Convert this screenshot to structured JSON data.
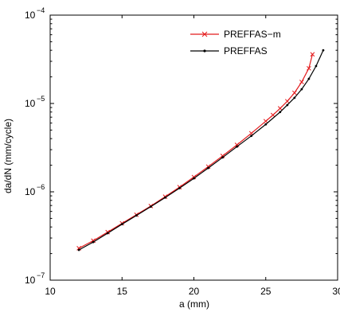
{
  "chart_data": {
    "type": "line",
    "xlabel": "a (mm)",
    "ylabel": "da/dN (mm/cycle)",
    "xlim": [
      10,
      30
    ],
    "ylim": [
      1e-07,
      0.0001
    ],
    "yscale": "log",
    "xticks": [
      10,
      15,
      20,
      25,
      30
    ],
    "xtick_labels": [
      "10",
      "15",
      "20",
      "25",
      "30"
    ],
    "yticks": [
      1e-07,
      1e-06,
      1e-05,
      0.0001
    ],
    "ytick_labels": [
      {
        "base": "10",
        "exp": "−7"
      },
      {
        "base": "10",
        "exp": "−6"
      },
      {
        "base": "10",
        "exp": "−5"
      },
      {
        "base": "10",
        "exp": "−4"
      }
    ],
    "grid": false,
    "legend_position": "top-right",
    "series": [
      {
        "name": "PREFFAS−m",
        "color": "#e41a1c",
        "marker": "x",
        "x": [
          12.0,
          13.0,
          14.0,
          15.0,
          16.0,
          17.0,
          18.0,
          19.0,
          20.0,
          21.0,
          22.0,
          23.0,
          24.0,
          25.0,
          25.5,
          26.0,
          26.5,
          27.0,
          27.5,
          28.0,
          28.25
        ],
        "y": [
          2.3e-07,
          2.8e-07,
          3.5e-07,
          4.4e-07,
          5.5e-07,
          6.9e-07,
          8.8e-07,
          1.13e-06,
          1.47e-06,
          1.93e-06,
          2.55e-06,
          3.4e-06,
          4.6e-06,
          6.3e-06,
          7.4e-06,
          8.8e-06,
          1.06e-05,
          1.32e-05,
          1.75e-05,
          2.5e-05,
          3.6e-05
        ]
      },
      {
        "name": "PREFFAS",
        "color": "#000000",
        "marker": "dot",
        "x": [
          12.0,
          13.0,
          14.0,
          15.0,
          16.0,
          17.0,
          18.0,
          19.0,
          20.0,
          21.0,
          22.0,
          23.0,
          24.0,
          25.0,
          26.0,
          26.5,
          27.0,
          27.5,
          28.0,
          28.5,
          29.0
        ],
        "y": [
          2.2e-07,
          2.7e-07,
          3.4e-07,
          4.3e-07,
          5.4e-07,
          6.8e-07,
          8.6e-07,
          1.1e-06,
          1.42e-06,
          1.86e-06,
          2.45e-06,
          3.25e-06,
          4.3e-06,
          5.8e-06,
          8e-06,
          9.6e-06,
          1.16e-05,
          1.45e-05,
          1.9e-05,
          2.65e-05,
          4e-05
        ]
      }
    ]
  }
}
